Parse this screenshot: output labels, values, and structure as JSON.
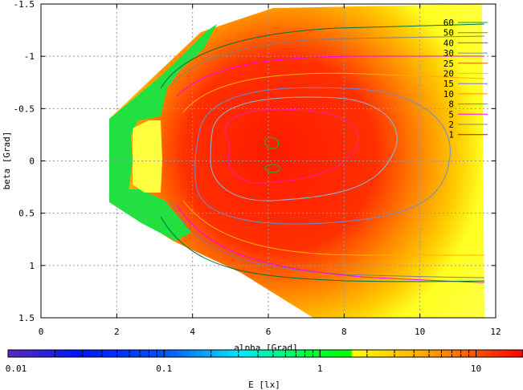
{
  "chart_data": {
    "type": "heatmap",
    "title": "",
    "xlabel": "alpha [Grad]",
    "ylabel": "beta [Grad]",
    "xlim": [
      0,
      12
    ],
    "ylim": [
      -1.5,
      1.5
    ],
    "y_inverted": true,
    "x_ticks": [
      "0",
      "2",
      "4",
      "6",
      "8",
      "10",
      "12"
    ],
    "y_ticks": [
      "-1.5",
      "-1",
      "-0.5",
      "0",
      "0.5",
      "1",
      "1.5"
    ],
    "grid": true,
    "colorbar": {
      "label": "E [lx]",
      "scale": "log",
      "range": [
        0.01,
        20
      ],
      "tick_labels": [
        "0.01",
        "0.1",
        "1",
        "10"
      ],
      "colors": [
        "#5a2bbd",
        "#0014ff",
        "#00e8ff",
        "#00ff00",
        "#ffff00",
        "#ff0000"
      ]
    },
    "contour_levels": {
      "labels": [
        "60",
        "50",
        "40",
        "30",
        "25",
        "20",
        "15",
        "10",
        "8",
        "5",
        "2",
        "1"
      ],
      "colors": [
        "#00a040",
        "#8a8a00",
        "#ff00ff",
        "#7090c0",
        "#e06000",
        "#ffc020",
        "#7b68ee",
        "#ff8c00",
        "#7080a0",
        "#ff00ff",
        "#808080",
        "#cc0000"
      ]
    },
    "peak_region": {
      "alpha": 6.2,
      "beta": 0.0,
      "max_lx": 20
    }
  }
}
